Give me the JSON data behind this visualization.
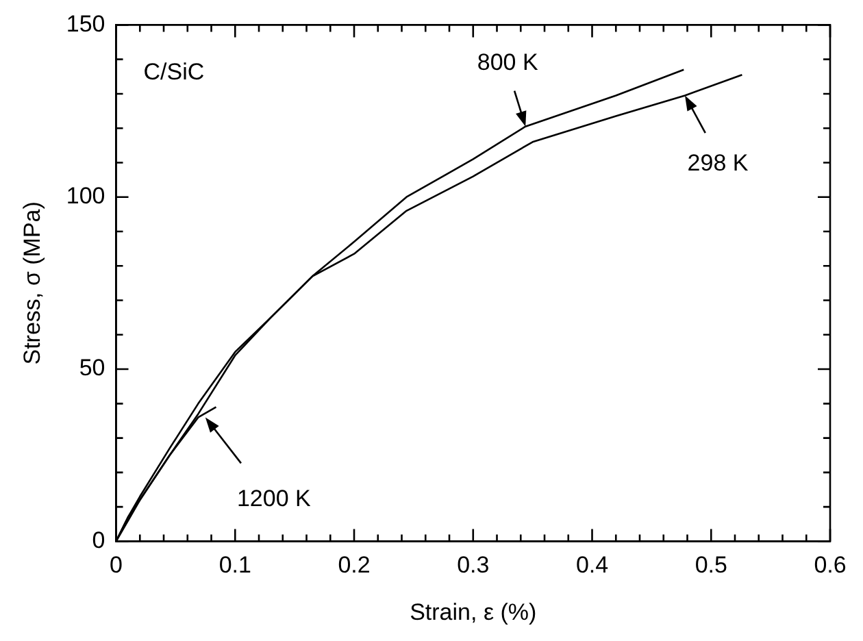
{
  "chart_data": {
    "type": "line",
    "xlabel": "Strain, ε (%)",
    "ylabel": "Stress, σ (MPa)",
    "xlim": [
      0,
      0.6
    ],
    "ylim": [
      0,
      150
    ],
    "xticks": [
      0,
      {
        "value": 0.02,
        "label": null
      },
      {
        "value": 0.04,
        "label": null
      },
      {
        "value": 0.06,
        "label": null
      },
      {
        "value": 0.08,
        "label": null
      },
      0.1,
      {
        "value": 0.12,
        "label": null
      },
      {
        "value": 0.14,
        "label": null
      },
      {
        "value": 0.16,
        "label": null
      },
      {
        "value": 0.18,
        "label": null
      },
      0.2,
      {
        "value": 0.22,
        "label": null
      },
      {
        "value": 0.24,
        "label": null
      },
      {
        "value": 0.26,
        "label": null
      },
      {
        "value": 0.28,
        "label": null
      },
      0.3,
      {
        "value": 0.32,
        "label": null
      },
      {
        "value": 0.34,
        "label": null
      },
      {
        "value": 0.36,
        "label": null
      },
      {
        "value": 0.38,
        "label": null
      },
      0.4,
      {
        "value": 0.42,
        "label": null
      },
      {
        "value": 0.44,
        "label": null
      },
      {
        "value": 0.46,
        "label": null
      },
      {
        "value": 0.48,
        "label": null
      },
      0.5,
      {
        "value": 0.52,
        "label": null
      },
      {
        "value": 0.54,
        "label": null
      },
      {
        "value": 0.56,
        "label": null
      },
      {
        "value": 0.58,
        "label": null
      },
      0.6
    ],
    "yticks": [
      0,
      {
        "value": 10,
        "label": null
      },
      {
        "value": 20,
        "label": null
      },
      {
        "value": 30,
        "label": null
      },
      {
        "value": 40,
        "label": null
      },
      50,
      {
        "value": 60,
        "label": null
      },
      {
        "value": 70,
        "label": null
      },
      {
        "value": 80,
        "label": null
      },
      {
        "value": 90,
        "label": null
      },
      100,
      {
        "value": 110,
        "label": null
      },
      {
        "value": 120,
        "label": null
      },
      {
        "value": 130,
        "label": null
      },
      {
        "value": 140,
        "label": null
      },
      150
    ],
    "grid": false,
    "legend": false,
    "marker": "none",
    "line_style": "solid",
    "series": [
      {
        "color": "#000000",
        "x": [
          0,
          0.01,
          0.02,
          0.045,
          0.069,
          0.1,
          0.13,
          0.165,
          0.2,
          0.244,
          0.3,
          0.344,
          0.42,
          0.477
        ],
        "values": [
          0,
          7,
          13,
          27,
          40,
          55,
          65,
          77,
          87,
          100,
          111,
          120.5,
          129.5,
          137
        ]
      },
      {
        "color": "#000000",
        "x": [
          0,
          0.01,
          0.02,
          0.045,
          0.069,
          0.1,
          0.13,
          0.165,
          0.2,
          0.244,
          0.3,
          0.35,
          0.42,
          0.478,
          0.526
        ],
        "values": [
          0,
          7,
          12,
          25,
          37,
          54,
          65,
          77,
          83.5,
          96,
          106,
          116,
          123.5,
          129.5,
          135.5
        ]
      },
      {
        "color": "#000000",
        "x": [
          0,
          0.01,
          0.02,
          0.045,
          0.069,
          0.084
        ],
        "values": [
          0,
          6,
          12,
          25,
          36,
          39
        ]
      }
    ],
    "annotations": [
      "C/SiC",
      {
        "text": "800 K",
        "x": 0.344,
        "y": 120.5
      },
      {
        "text": "298 K",
        "x": 0.478,
        "y": 129.5
      },
      {
        "text": "1200 K",
        "x": 0.075,
        "y": 36
      }
    ]
  }
}
